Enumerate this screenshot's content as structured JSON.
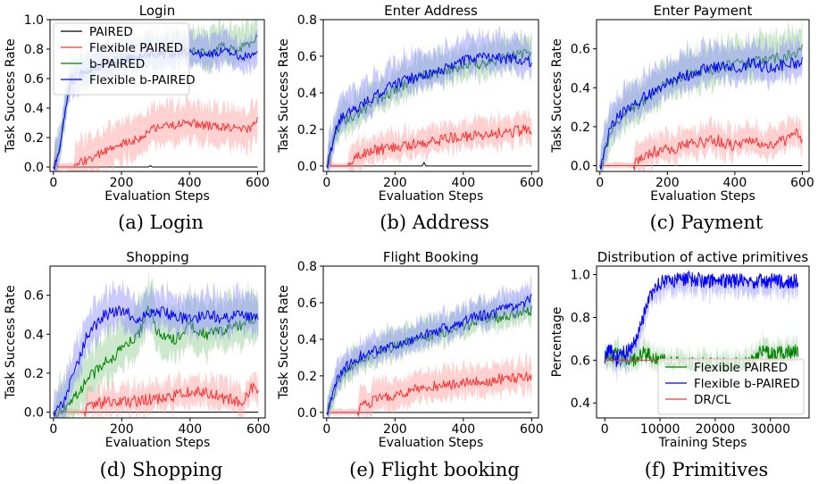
{
  "colors": {
    "paired": "#000000",
    "flex_paired": "#ff3030",
    "b_paired": "#008000",
    "flex_b_paired": "#0000ff",
    "flex_paired_band": "#ff9a9a",
    "b_paired_band": "#8fcc8f",
    "flex_b_paired_band": "#8a8aff"
  },
  "chart_data": [
    {
      "type": "line",
      "title": "Login",
      "caption": "(a) Login",
      "xlabel": "Evaluation Steps",
      "ylabel": "Task Success Rate",
      "xlim": [
        -10,
        620
      ],
      "ylim": [
        -0.03,
        1.0
      ],
      "xticks": [
        0,
        200,
        400,
        600
      ],
      "yticks": [
        0.0,
        0.2,
        0.4,
        0.6,
        0.8,
        1.0
      ],
      "legend": {
        "position": "top-left",
        "entries": [
          "PAIRED",
          "Flexible PAIRED",
          "b-PAIRED",
          "Flexible b-PAIRED"
        ]
      },
      "series": [
        {
          "name": "PAIRED",
          "color_key": "paired",
          "x": [
            0,
            5,
            10,
            20,
            40,
            100,
            200,
            280,
            285,
            290,
            300,
            400,
            500,
            600
          ],
          "y": [
            0.0,
            0.05,
            0.0,
            0.0,
            0.0,
            0.0,
            0.0,
            0.0,
            0.01,
            0.0,
            0.0,
            0.0,
            0.0,
            0.0
          ]
        },
        {
          "name": "Flexible PAIRED",
          "color_key": "flex_paired",
          "x": [
            0,
            5,
            10,
            60,
            70,
            100,
            150,
            200,
            250,
            300,
            350,
            400,
            450,
            500,
            550,
            580,
            590,
            600
          ],
          "y": [
            0.0,
            0.05,
            0.0,
            0.0,
            0.02,
            0.05,
            0.1,
            0.15,
            0.19,
            0.27,
            0.28,
            0.3,
            0.28,
            0.27,
            0.26,
            0.25,
            0.3,
            0.32
          ],
          "band": [
            0.12,
            0.14
          ]
        },
        {
          "name": "b-PAIRED",
          "color_key": "b_paired",
          "x": [
            0,
            10,
            20,
            30,
            40,
            50,
            100,
            150,
            200,
            250,
            300,
            350,
            400,
            450,
            500,
            550,
            600
          ],
          "y": [
            0.0,
            0.05,
            0.15,
            0.3,
            0.45,
            0.6,
            0.65,
            0.7,
            0.75,
            0.75,
            0.78,
            0.79,
            0.8,
            0.77,
            0.82,
            0.8,
            0.87
          ],
          "band": [
            0.1,
            0.14
          ]
        },
        {
          "name": "Flexible b-PAIRED",
          "color_key": "flex_b_paired",
          "x": [
            0,
            10,
            20,
            30,
            40,
            50,
            100,
            150,
            200,
            250,
            300,
            350,
            400,
            450,
            500,
            550,
            600
          ],
          "y": [
            0.0,
            0.04,
            0.15,
            0.32,
            0.45,
            0.58,
            0.66,
            0.7,
            0.72,
            0.75,
            0.77,
            0.76,
            0.78,
            0.76,
            0.79,
            0.75,
            0.76
          ],
          "band": [
            0.09,
            0.12
          ]
        }
      ]
    },
    {
      "type": "line",
      "title": "Enter Address",
      "caption": "(b) Address",
      "xlabel": "Evaluation Steps",
      "ylabel": "Task Success Rate",
      "xlim": [
        -10,
        620
      ],
      "ylim": [
        -0.03,
        0.8
      ],
      "xticks": [
        0,
        200,
        400,
        600
      ],
      "yticks": [
        0.0,
        0.2,
        0.4,
        0.6,
        0.8
      ],
      "series": [
        {
          "name": "PAIRED",
          "color_key": "paired",
          "x": [
            0,
            5,
            10,
            20,
            100,
            200,
            280,
            285,
            290,
            300,
            400,
            500,
            600
          ],
          "y": [
            0.0,
            0.05,
            0.0,
            0.0,
            0.0,
            0.0,
            0.0,
            0.02,
            0.0,
            0.0,
            0.0,
            0.0,
            0.0
          ]
        },
        {
          "name": "Flexible PAIRED",
          "color_key": "flex_paired",
          "x": [
            0,
            5,
            10,
            60,
            80,
            100,
            150,
            200,
            250,
            300,
            350,
            400,
            450,
            500,
            550,
            600
          ],
          "y": [
            0.0,
            0.05,
            0.0,
            0.0,
            0.03,
            0.07,
            0.09,
            0.1,
            0.12,
            0.13,
            0.15,
            0.16,
            0.17,
            0.18,
            0.19,
            0.2
          ],
          "band": [
            0.06,
            0.08
          ]
        },
        {
          "name": "b-PAIRED",
          "color_key": "b_paired",
          "x": [
            0,
            10,
            20,
            30,
            50,
            100,
            150,
            200,
            250,
            300,
            350,
            400,
            450,
            500,
            550,
            600
          ],
          "y": [
            0.0,
            0.06,
            0.14,
            0.2,
            0.25,
            0.3,
            0.36,
            0.42,
            0.47,
            0.5,
            0.52,
            0.55,
            0.56,
            0.58,
            0.6,
            0.63
          ],
          "band": [
            0.07,
            0.1
          ]
        },
        {
          "name": "Flexible b-PAIRED",
          "color_key": "flex_b_paired",
          "x": [
            0,
            10,
            20,
            30,
            50,
            100,
            150,
            200,
            250,
            300,
            350,
            400,
            450,
            500,
            550,
            600
          ],
          "y": [
            0.0,
            0.07,
            0.15,
            0.22,
            0.28,
            0.33,
            0.39,
            0.45,
            0.48,
            0.5,
            0.53,
            0.58,
            0.6,
            0.59,
            0.58,
            0.57
          ],
          "band": [
            0.07,
            0.12
          ]
        }
      ]
    },
    {
      "type": "line",
      "title": "Enter Payment",
      "caption": "(c) Payment",
      "xlabel": "Evaluation Steps",
      "ylabel": "Task Success Rate",
      "xlim": [
        -10,
        620
      ],
      "ylim": [
        -0.03,
        0.75
      ],
      "xticks": [
        0,
        200,
        400,
        600
      ],
      "yticks": [
        0.0,
        0.2,
        0.4,
        0.6
      ],
      "series": [
        {
          "name": "PAIRED",
          "color_key": "paired",
          "x": [
            0,
            5,
            10,
            20,
            100,
            200,
            300,
            400,
            500,
            600
          ],
          "y": [
            0.0,
            0.02,
            0.0,
            0.0,
            0.0,
            0.0,
            0.0,
            0.0,
            0.0,
            0.0
          ]
        },
        {
          "name": "Flexible PAIRED",
          "color_key": "flex_paired",
          "x": [
            0,
            100,
            120,
            150,
            200,
            250,
            300,
            350,
            400,
            450,
            500,
            550,
            580,
            600
          ],
          "y": [
            0.0,
            0.0,
            0.05,
            0.07,
            0.08,
            0.1,
            0.12,
            0.13,
            0.1,
            0.12,
            0.11,
            0.13,
            0.17,
            0.12
          ],
          "band": [
            0.06,
            0.08
          ]
        },
        {
          "name": "b-PAIRED",
          "color_key": "b_paired",
          "x": [
            0,
            10,
            20,
            30,
            50,
            100,
            150,
            200,
            250,
            300,
            350,
            400,
            450,
            500,
            550,
            600
          ],
          "y": [
            0.0,
            0.03,
            0.1,
            0.17,
            0.22,
            0.3,
            0.36,
            0.42,
            0.46,
            0.48,
            0.5,
            0.52,
            0.53,
            0.55,
            0.56,
            0.6
          ],
          "band": [
            0.08,
            0.12
          ]
        },
        {
          "name": "Flexible b-PAIRED",
          "color_key": "flex_b_paired",
          "x": [
            0,
            10,
            20,
            30,
            50,
            100,
            150,
            200,
            250,
            300,
            350,
            400,
            450,
            500,
            550,
            600
          ],
          "y": [
            0.0,
            0.04,
            0.12,
            0.18,
            0.24,
            0.31,
            0.37,
            0.43,
            0.46,
            0.49,
            0.51,
            0.5,
            0.53,
            0.5,
            0.52,
            0.53
          ],
          "band": [
            0.07,
            0.11
          ]
        }
      ]
    },
    {
      "type": "line",
      "title": "Shopping",
      "caption": "(d) Shopping",
      "xlabel": "Evaluation Steps",
      "ylabel": "Task Success Rate",
      "xlim": [
        -10,
        620
      ],
      "ylim": [
        -0.03,
        0.75
      ],
      "xticks": [
        0,
        200,
        400,
        600
      ],
      "yticks": [
        0.0,
        0.2,
        0.4,
        0.6
      ],
      "series": [
        {
          "name": "PAIRED",
          "color_key": "paired",
          "x": [
            0,
            100,
            200,
            300,
            400,
            500,
            600
          ],
          "y": [
            0.0,
            0.0,
            0.0,
            0.0,
            0.0,
            0.0,
            0.0
          ]
        },
        {
          "name": "Flexible PAIRED",
          "color_key": "flex_paired",
          "x": [
            0,
            90,
            100,
            150,
            200,
            250,
            300,
            350,
            400,
            450,
            500,
            550,
            580,
            600
          ],
          "y": [
            0.0,
            0.0,
            0.03,
            0.05,
            0.05,
            0.06,
            0.07,
            0.08,
            0.11,
            0.1,
            0.07,
            0.05,
            0.13,
            0.12
          ],
          "band": [
            0.06,
            0.08
          ]
        },
        {
          "name": "b-PAIRED",
          "color_key": "b_paired",
          "x": [
            0,
            30,
            50,
            80,
            100,
            150,
            200,
            250,
            280,
            300,
            350,
            400,
            450,
            500,
            550,
            600
          ],
          "y": [
            0.0,
            0.02,
            0.06,
            0.12,
            0.17,
            0.25,
            0.32,
            0.4,
            0.55,
            0.42,
            0.37,
            0.44,
            0.4,
            0.42,
            0.45,
            0.48
          ],
          "band": [
            0.1,
            0.15
          ]
        },
        {
          "name": "Flexible b-PAIRED",
          "color_key": "flex_b_paired",
          "x": [
            0,
            30,
            50,
            80,
            100,
            150,
            200,
            250,
            300,
            350,
            400,
            450,
            500,
            550,
            600
          ],
          "y": [
            0.0,
            0.05,
            0.15,
            0.3,
            0.4,
            0.5,
            0.52,
            0.48,
            0.52,
            0.5,
            0.47,
            0.5,
            0.48,
            0.5,
            0.48
          ],
          "band": [
            0.08,
            0.11
          ]
        }
      ]
    },
    {
      "type": "line",
      "title": "Flight Booking",
      "caption": "(e) Flight booking",
      "xlabel": "Evaluation Steps",
      "ylabel": "Task Success Rate",
      "xlim": [
        -10,
        620
      ],
      "ylim": [
        -0.03,
        0.8
      ],
      "xticks": [
        0,
        200,
        400,
        600
      ],
      "yticks": [
        0.0,
        0.2,
        0.4,
        0.6,
        0.8
      ],
      "series": [
        {
          "name": "PAIRED",
          "color_key": "paired",
          "x": [
            0,
            100,
            200,
            300,
            400,
            500,
            600
          ],
          "y": [
            0.0,
            0.0,
            0.0,
            0.0,
            0.0,
            0.0,
            0.0
          ]
        },
        {
          "name": "Flexible PAIRED",
          "color_key": "flex_paired",
          "x": [
            0,
            90,
            100,
            150,
            200,
            250,
            300,
            350,
            400,
            450,
            500,
            550,
            600
          ],
          "y": [
            0.0,
            0.0,
            0.04,
            0.07,
            0.1,
            0.12,
            0.14,
            0.15,
            0.16,
            0.17,
            0.18,
            0.19,
            0.2
          ],
          "band": [
            0.07,
            0.09
          ]
        },
        {
          "name": "b-PAIRED",
          "color_key": "b_paired",
          "x": [
            0,
            10,
            20,
            30,
            50,
            100,
            150,
            200,
            250,
            300,
            350,
            400,
            450,
            500,
            550,
            600
          ],
          "y": [
            0.0,
            0.05,
            0.1,
            0.15,
            0.22,
            0.3,
            0.33,
            0.36,
            0.39,
            0.42,
            0.44,
            0.47,
            0.5,
            0.52,
            0.54,
            0.56
          ],
          "band": [
            0.06,
            0.09
          ]
        },
        {
          "name": "Flexible b-PAIRED",
          "color_key": "flex_b_paired",
          "x": [
            0,
            10,
            20,
            30,
            50,
            100,
            150,
            200,
            250,
            300,
            350,
            400,
            450,
            500,
            550,
            600
          ],
          "y": [
            0.0,
            0.06,
            0.12,
            0.17,
            0.24,
            0.31,
            0.34,
            0.37,
            0.4,
            0.44,
            0.46,
            0.5,
            0.53,
            0.55,
            0.58,
            0.62
          ],
          "band": [
            0.06,
            0.08
          ]
        }
      ]
    },
    {
      "type": "line",
      "title": "Distribution of active primitives",
      "caption": "(f) Primitives",
      "xlabel": "Training Steps",
      "ylabel": "Percentage",
      "xlim": [
        -1500,
        37000
      ],
      "ylim": [
        0.33,
        1.04
      ],
      "xticks": [
        0,
        10000,
        20000,
        30000
      ],
      "yticks": [
        0.4,
        0.6,
        0.8,
        1.0
      ],
      "legend": {
        "position": "bottom-right",
        "entries": [
          "Flexible PAIRED",
          "Flexible b-PAIRED",
          "DR/CL"
        ]
      },
      "series": [
        {
          "name": "Flexible PAIRED",
          "color_key": "b_paired",
          "x": [
            0,
            1000,
            2000,
            3000,
            4000,
            5000,
            6000,
            7000,
            8000,
            10000,
            15000,
            20000,
            25000,
            27000,
            28000,
            30000,
            35000
          ],
          "y": [
            0.62,
            0.6,
            0.63,
            0.6,
            0.61,
            0.6,
            0.62,
            0.63,
            0.62,
            0.6,
            0.58,
            0.58,
            0.58,
            0.6,
            0.64,
            0.63,
            0.64
          ],
          "band": [
            0.04,
            0.05
          ]
        },
        {
          "name": "Flexible b-PAIRED",
          "color_key": "flex_b_paired",
          "x": [
            0,
            1000,
            2000,
            3000,
            4000,
            5000,
            6000,
            7000,
            8000,
            9000,
            10000,
            12000,
            15000,
            20000,
            25000,
            30000,
            35000
          ],
          "y": [
            0.62,
            0.65,
            0.6,
            0.63,
            0.64,
            0.66,
            0.72,
            0.8,
            0.88,
            0.93,
            0.96,
            0.97,
            0.98,
            0.97,
            0.97,
            0.97,
            0.97
          ],
          "band": [
            0.06,
            0.01
          ]
        },
        {
          "name": "DR/CL",
          "color_key": "flex_paired",
          "x": [
            0,
            35000
          ],
          "y": [
            0.6,
            0.6
          ]
        }
      ]
    }
  ]
}
